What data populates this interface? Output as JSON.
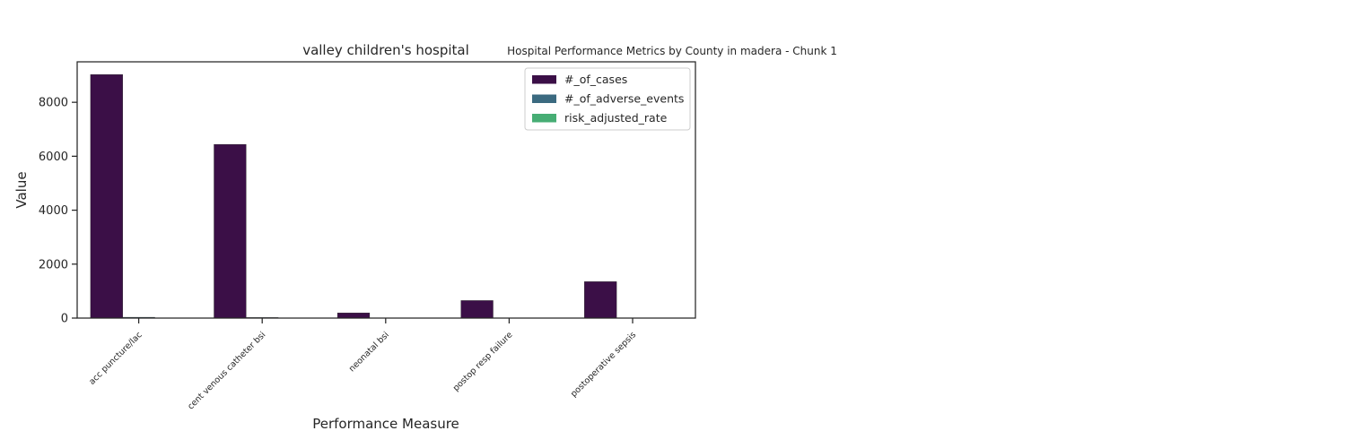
{
  "suptitle": "Hospital Performance Metrics by County in madera - Chunk 1",
  "chart_data": {
    "type": "bar",
    "title": "valley children's hospital",
    "xlabel": "Performance Measure",
    "ylabel": "Value",
    "ylim": [
      0,
      9500
    ],
    "yticks": [
      0,
      2000,
      4000,
      6000,
      8000
    ],
    "ytick_labels": [
      "0",
      "2000",
      "4000",
      "6000",
      "8000"
    ],
    "grid": false,
    "legend_position": "top-right",
    "categories": [
      "acc puncture/lac",
      "cent venous catheter bsi",
      "neonatal bsi",
      "postop resp failure",
      "postoperative sepsis"
    ],
    "series": [
      {
        "name": "#_of_cases",
        "color": "#3b0f47",
        "values": [
          9030,
          6440,
          190,
          650,
          1350
        ]
      },
      {
        "name": "#_of_adverse_events",
        "color": "#3b6a80",
        "values": [
          30,
          20,
          2,
          8,
          10
        ]
      },
      {
        "name": "risk_adjusted_rate",
        "color": "#46ad74",
        "values": [
          1.5,
          1.8,
          0.9,
          1.2,
          2.6
        ]
      }
    ]
  }
}
